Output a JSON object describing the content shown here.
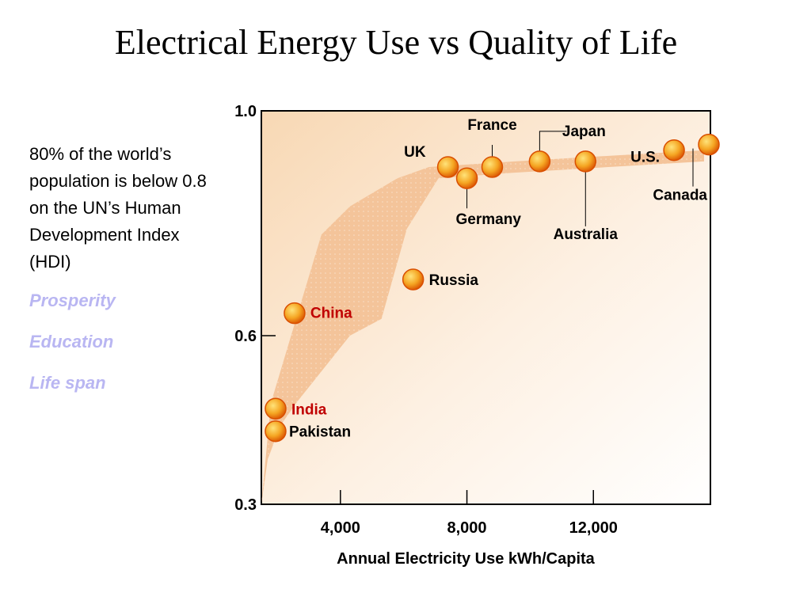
{
  "slide": {
    "title": "Electrical Energy Use vs Quality of Life",
    "side_text": "80% of the world’s population is below 0.8 on the UN’s Human Development Index (HDI)",
    "side_list": [
      "Prosperity",
      "Education",
      "Life span"
    ]
  },
  "colors": {
    "side_list_text": "#b9b6f2",
    "highlight_label": "#c00000",
    "point_fill": "#f5a623",
    "point_edge": "#d94f00",
    "band_fill": "#f4c49a",
    "plot_bg": "#fbe8d2"
  },
  "chart_data": {
    "type": "scatter",
    "title": "",
    "xlabel": "Annual Electricity Use kWh/Capita",
    "ylabel": "",
    "xlim": [
      1500,
      15700
    ],
    "ylim": [
      0.3,
      1.0
    ],
    "x_ticks": [
      4000,
      8000,
      12000
    ],
    "x_tick_labels": [
      "4,000",
      "8,000",
      "12,000"
    ],
    "y_ticks": [
      0.3,
      0.6,
      1.0
    ],
    "y_tick_labels": [
      "0.3",
      "0.6",
      "1.0"
    ],
    "grid": false,
    "points": [
      {
        "label": "India",
        "x": 1950,
        "y": 0.47,
        "highlight": true
      },
      {
        "label": "Pakistan",
        "x": 1950,
        "y": 0.43,
        "highlight": false
      },
      {
        "label": "China",
        "x": 2550,
        "y": 0.64,
        "highlight": true
      },
      {
        "label": "Russia",
        "x": 6300,
        "y": 0.7,
        "highlight": false
      },
      {
        "label": "UK",
        "x": 7400,
        "y": 0.9,
        "highlight": false
      },
      {
        "label": "Germany",
        "x": 8000,
        "y": 0.88,
        "highlight": false
      },
      {
        "label": "France",
        "x": 8800,
        "y": 0.9,
        "highlight": false
      },
      {
        "label": "Japan",
        "x": 10300,
        "y": 0.91,
        "highlight": false
      },
      {
        "label": "Australia",
        "x": 11750,
        "y": 0.91,
        "highlight": false
      },
      {
        "label": "U.S.",
        "x": 14550,
        "y": 0.93,
        "highlight": false
      },
      {
        "label": "Canada",
        "x": 15650,
        "y": 0.94,
        "highlight": false
      }
    ],
    "band": {
      "upper": [
        [
          1500,
          0.3
        ],
        [
          1800,
          0.48
        ],
        [
          2600,
          0.63
        ],
        [
          3400,
          0.78
        ],
        [
          4300,
          0.83
        ],
        [
          5800,
          0.88
        ],
        [
          6800,
          0.9
        ],
        [
          9500,
          0.91
        ],
        [
          15500,
          0.93
        ]
      ],
      "lower": [
        [
          15500,
          0.91
        ],
        [
          9500,
          0.89
        ],
        [
          7100,
          0.88
        ],
        [
          6100,
          0.79
        ],
        [
          5300,
          0.63
        ],
        [
          4300,
          0.6
        ],
        [
          2600,
          0.48
        ],
        [
          2100,
          0.44
        ],
        [
          1700,
          0.38
        ],
        [
          1500,
          0.3
        ]
      ]
    }
  }
}
